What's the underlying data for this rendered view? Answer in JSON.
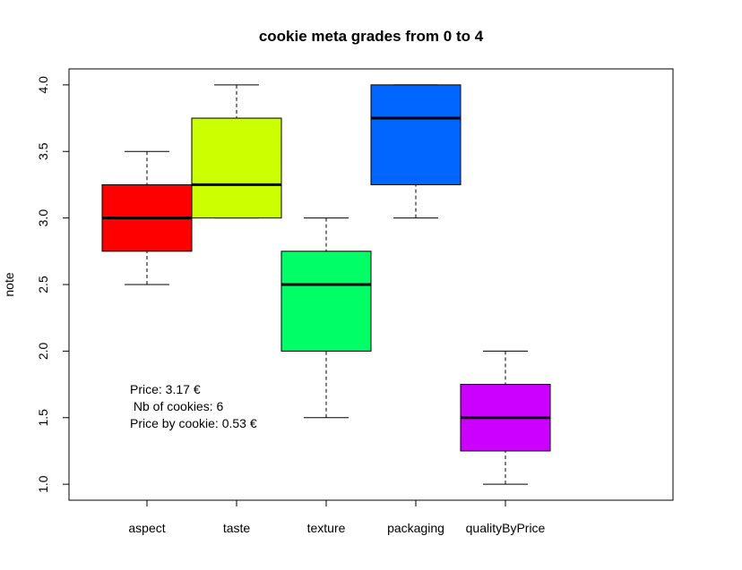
{
  "chart_data": {
    "type": "boxplot",
    "title": "cookie meta grades from 0 to 4",
    "xlabel": "",
    "ylabel": "note",
    "ylim": [
      0.88,
      4.12
    ],
    "yticks": [
      "1.0",
      "1.5",
      "2.0",
      "2.5",
      "3.0",
      "3.5",
      "4.0"
    ],
    "ytick_values": [
      1.0,
      1.5,
      2.0,
      2.5,
      3.0,
      3.5,
      4.0
    ],
    "grid": false,
    "categories": [
      "aspect",
      "taste",
      "texture",
      "packaging",
      "qualityByPrice"
    ],
    "boxes": [
      {
        "category": "aspect",
        "min": 2.5,
        "q1": 2.75,
        "median": 3.0,
        "q3": 3.25,
        "max": 3.5,
        "color": "#ff0000"
      },
      {
        "category": "taste",
        "min": 3.0,
        "q1": 3.0,
        "median": 3.25,
        "q3": 3.75,
        "max": 4.0,
        "color": "#ccff00"
      },
      {
        "category": "texture",
        "min": 1.5,
        "q1": 2.0,
        "median": 2.5,
        "q3": 2.75,
        "max": 3.0,
        "color": "#00ff66"
      },
      {
        "category": "packaging",
        "min": 3.0,
        "q1": 3.25,
        "median": 3.75,
        "q3": 4.0,
        "max": 4.0,
        "color": "#0066ff"
      },
      {
        "category": "qualityByPrice",
        "min": 1.0,
        "q1": 1.25,
        "median": 1.5,
        "q3": 1.75,
        "max": 2.0,
        "color": "#cc00ff"
      }
    ],
    "annotations": [
      "Price: 3.17 €",
      " Nb of cookies: 6",
      "Price by cookie: 0.53 €"
    ]
  }
}
